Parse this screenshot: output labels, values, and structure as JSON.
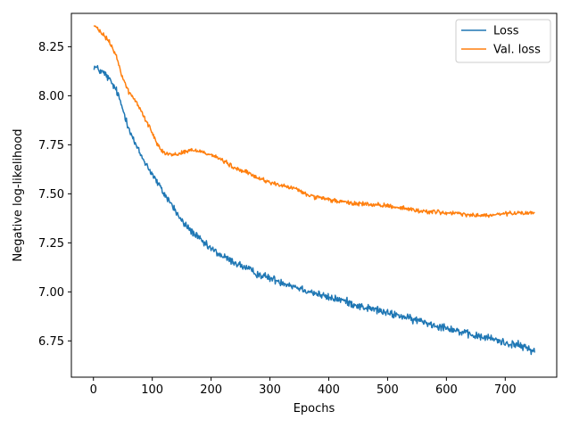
{
  "chart_data": {
    "type": "line",
    "title": "",
    "xlabel": "Epochs",
    "ylabel": "Negative log-likelihood",
    "xlim": [
      -37.5,
      787.5
    ],
    "ylim": [
      6.565,
      8.42
    ],
    "xticks": [
      0,
      100,
      200,
      300,
      400,
      500,
      600,
      700
    ],
    "yticks": [
      6.75,
      7.0,
      7.25,
      7.5,
      7.75,
      8.0,
      8.25
    ],
    "ytick_labels": [
      "6.75",
      "7.00",
      "7.25",
      "7.50",
      "7.75",
      "8.00",
      "8.25"
    ],
    "grid": false,
    "legend_position": "top-right",
    "series": [
      {
        "name": "Loss",
        "color": "#1f77b4",
        "noise": 0.014,
        "x": [
          1,
          10,
          20,
          30,
          40,
          50,
          60,
          70,
          80,
          90,
          100,
          110,
          120,
          130,
          140,
          150,
          160,
          170,
          180,
          190,
          200,
          220,
          240,
          260,
          280,
          300,
          320,
          340,
          360,
          380,
          400,
          420,
          440,
          460,
          480,
          500,
          520,
          540,
          560,
          580,
          600,
          620,
          640,
          660,
          680,
          700,
          720,
          740,
          750
        ],
        "values": [
          8.15,
          8.13,
          8.11,
          8.07,
          8.02,
          7.93,
          7.84,
          7.76,
          7.7,
          7.65,
          7.6,
          7.55,
          7.5,
          7.46,
          7.41,
          7.36,
          7.33,
          7.3,
          7.27,
          7.24,
          7.22,
          7.18,
          7.15,
          7.12,
          7.09,
          7.07,
          7.05,
          7.03,
          7.01,
          6.99,
          6.97,
          6.96,
          6.94,
          6.92,
          6.91,
          6.89,
          6.88,
          6.86,
          6.85,
          6.83,
          6.82,
          6.8,
          6.78,
          6.77,
          6.76,
          6.74,
          6.73,
          6.71,
          6.7
        ]
      },
      {
        "name": "Val. loss",
        "color": "#ff7f0e",
        "noise": 0.008,
        "x": [
          1,
          10,
          20,
          30,
          40,
          50,
          60,
          70,
          80,
          90,
          100,
          110,
          120,
          130,
          140,
          150,
          160,
          170,
          180,
          190,
          200,
          220,
          240,
          260,
          280,
          300,
          320,
          340,
          360,
          380,
          400,
          420,
          440,
          460,
          480,
          500,
          520,
          540,
          560,
          580,
          600,
          620,
          640,
          660,
          680,
          700,
          720,
          740,
          750
        ],
        "values": [
          8.36,
          8.33,
          8.3,
          8.26,
          8.19,
          8.09,
          8.02,
          7.98,
          7.93,
          7.87,
          7.81,
          7.75,
          7.71,
          7.7,
          7.7,
          7.71,
          7.72,
          7.72,
          7.72,
          7.71,
          7.7,
          7.67,
          7.63,
          7.61,
          7.58,
          7.56,
          7.54,
          7.53,
          7.5,
          7.48,
          7.47,
          7.46,
          7.45,
          7.45,
          7.44,
          7.44,
          7.43,
          7.42,
          7.41,
          7.41,
          7.4,
          7.4,
          7.39,
          7.39,
          7.39,
          7.4,
          7.4,
          7.4,
          7.41
        ]
      }
    ]
  }
}
